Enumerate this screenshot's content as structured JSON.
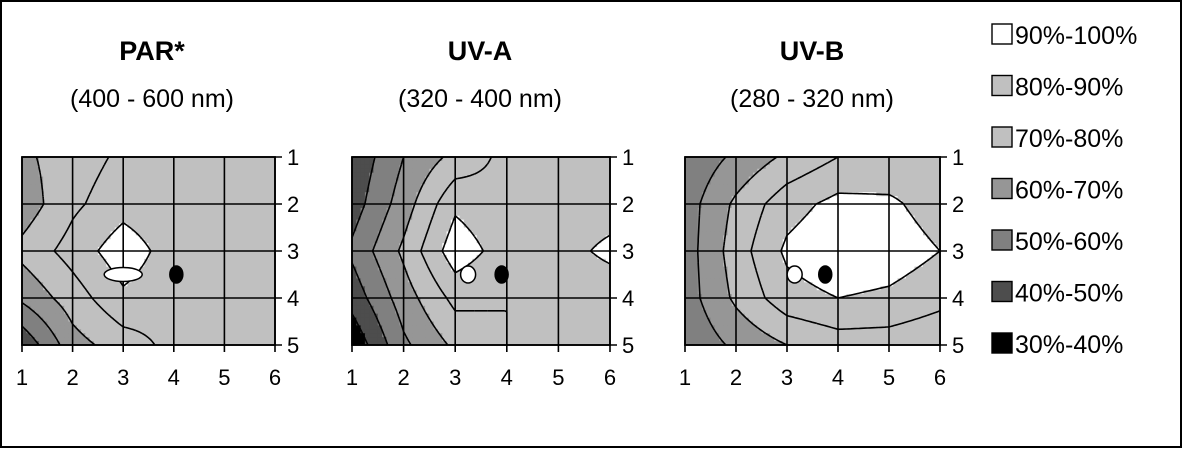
{
  "chart_data": {
    "type": "heatmap",
    "legend_position": "right",
    "grid": true,
    "legend": [
      {
        "label": "90%-100%",
        "color": "#ffffff"
      },
      {
        "label": "80%-90%",
        "color": "#c0c0c0"
      },
      {
        "label": "70%-80%",
        "color": "#c0c0c0"
      },
      {
        "label": "60%-70%",
        "color": "#969696"
      },
      {
        "label": "50%-60%",
        "color": "#808080"
      },
      {
        "label": "40%-50%",
        "color": "#4d4d4d"
      },
      {
        "label": "30%-40%",
        "color": "#000000"
      }
    ],
    "panels": [
      {
        "title": "PAR*",
        "subtitle": "(400 - 600 nm)",
        "x_ticks": [
          "1",
          "2",
          "3",
          "4",
          "5",
          "6"
        ],
        "y_ticks": [
          "1",
          "2",
          "3",
          "4",
          "5"
        ],
        "xlim": [
          1,
          6
        ],
        "ylim": [
          1,
          5
        ],
        "values": [
          [
            68,
            75,
            82,
            85,
            84,
            80
          ],
          [
            64,
            78,
            86,
            82,
            82,
            81
          ],
          [
            73,
            84,
            96,
            85,
            83,
            83
          ],
          [
            62,
            75,
            88,
            83,
            84,
            83
          ],
          [
            42,
            66,
            75,
            83,
            80,
            80
          ]
        ],
        "markers": [
          {
            "x": 3.0,
            "y": 3.5,
            "style": "open-ellipse"
          },
          {
            "x": 4.05,
            "y": 3.5,
            "style": "filled"
          }
        ]
      },
      {
        "title": "UV-A",
        "subtitle": "(320 - 400 nm)",
        "x_ticks": [
          "1",
          "2",
          "3",
          "4",
          "5",
          "6"
        ],
        "y_ticks": [
          "1",
          "2",
          "3",
          "4",
          "5"
        ],
        "xlim": [
          1,
          6
        ],
        "ylim": [
          1,
          5
        ],
        "values": [
          [
            42,
            60,
            73,
            83,
            85,
            85
          ],
          [
            45,
            65,
            88,
            82,
            84,
            84
          ],
          [
            52,
            72,
            96,
            85,
            85,
            93
          ],
          [
            44,
            65,
            83,
            80,
            82,
            82
          ],
          [
            32,
            58,
            72,
            80,
            82,
            80
          ]
        ],
        "markers": [
          {
            "x": 3.25,
            "y": 3.5,
            "style": "open"
          },
          {
            "x": 3.9,
            "y": 3.5,
            "style": "filled"
          }
        ]
      },
      {
        "title": "UV-B",
        "subtitle": "(280 - 320 nm)",
        "x_ticks": [
          "1",
          "2",
          "3",
          "4",
          "5",
          "6"
        ],
        "y_ticks": [
          "1",
          "2",
          "3",
          "4",
          "5"
        ],
        "xlim": [
          1,
          6
        ],
        "ylim": [
          1,
          5
        ],
        "values": [
          [
            52,
            62,
            72,
            80,
            82,
            85
          ],
          [
            55,
            72,
            86,
            93,
            92,
            85
          ],
          [
            55,
            75,
            92,
            98,
            96,
            90
          ],
          [
            55,
            72,
            86,
            90,
            88,
            83
          ],
          [
            52,
            62,
            70,
            75,
            75,
            72
          ]
        ],
        "markers": [
          {
            "x": 3.15,
            "y": 3.5,
            "style": "open"
          },
          {
            "x": 3.75,
            "y": 3.5,
            "style": "filled"
          }
        ]
      }
    ]
  }
}
